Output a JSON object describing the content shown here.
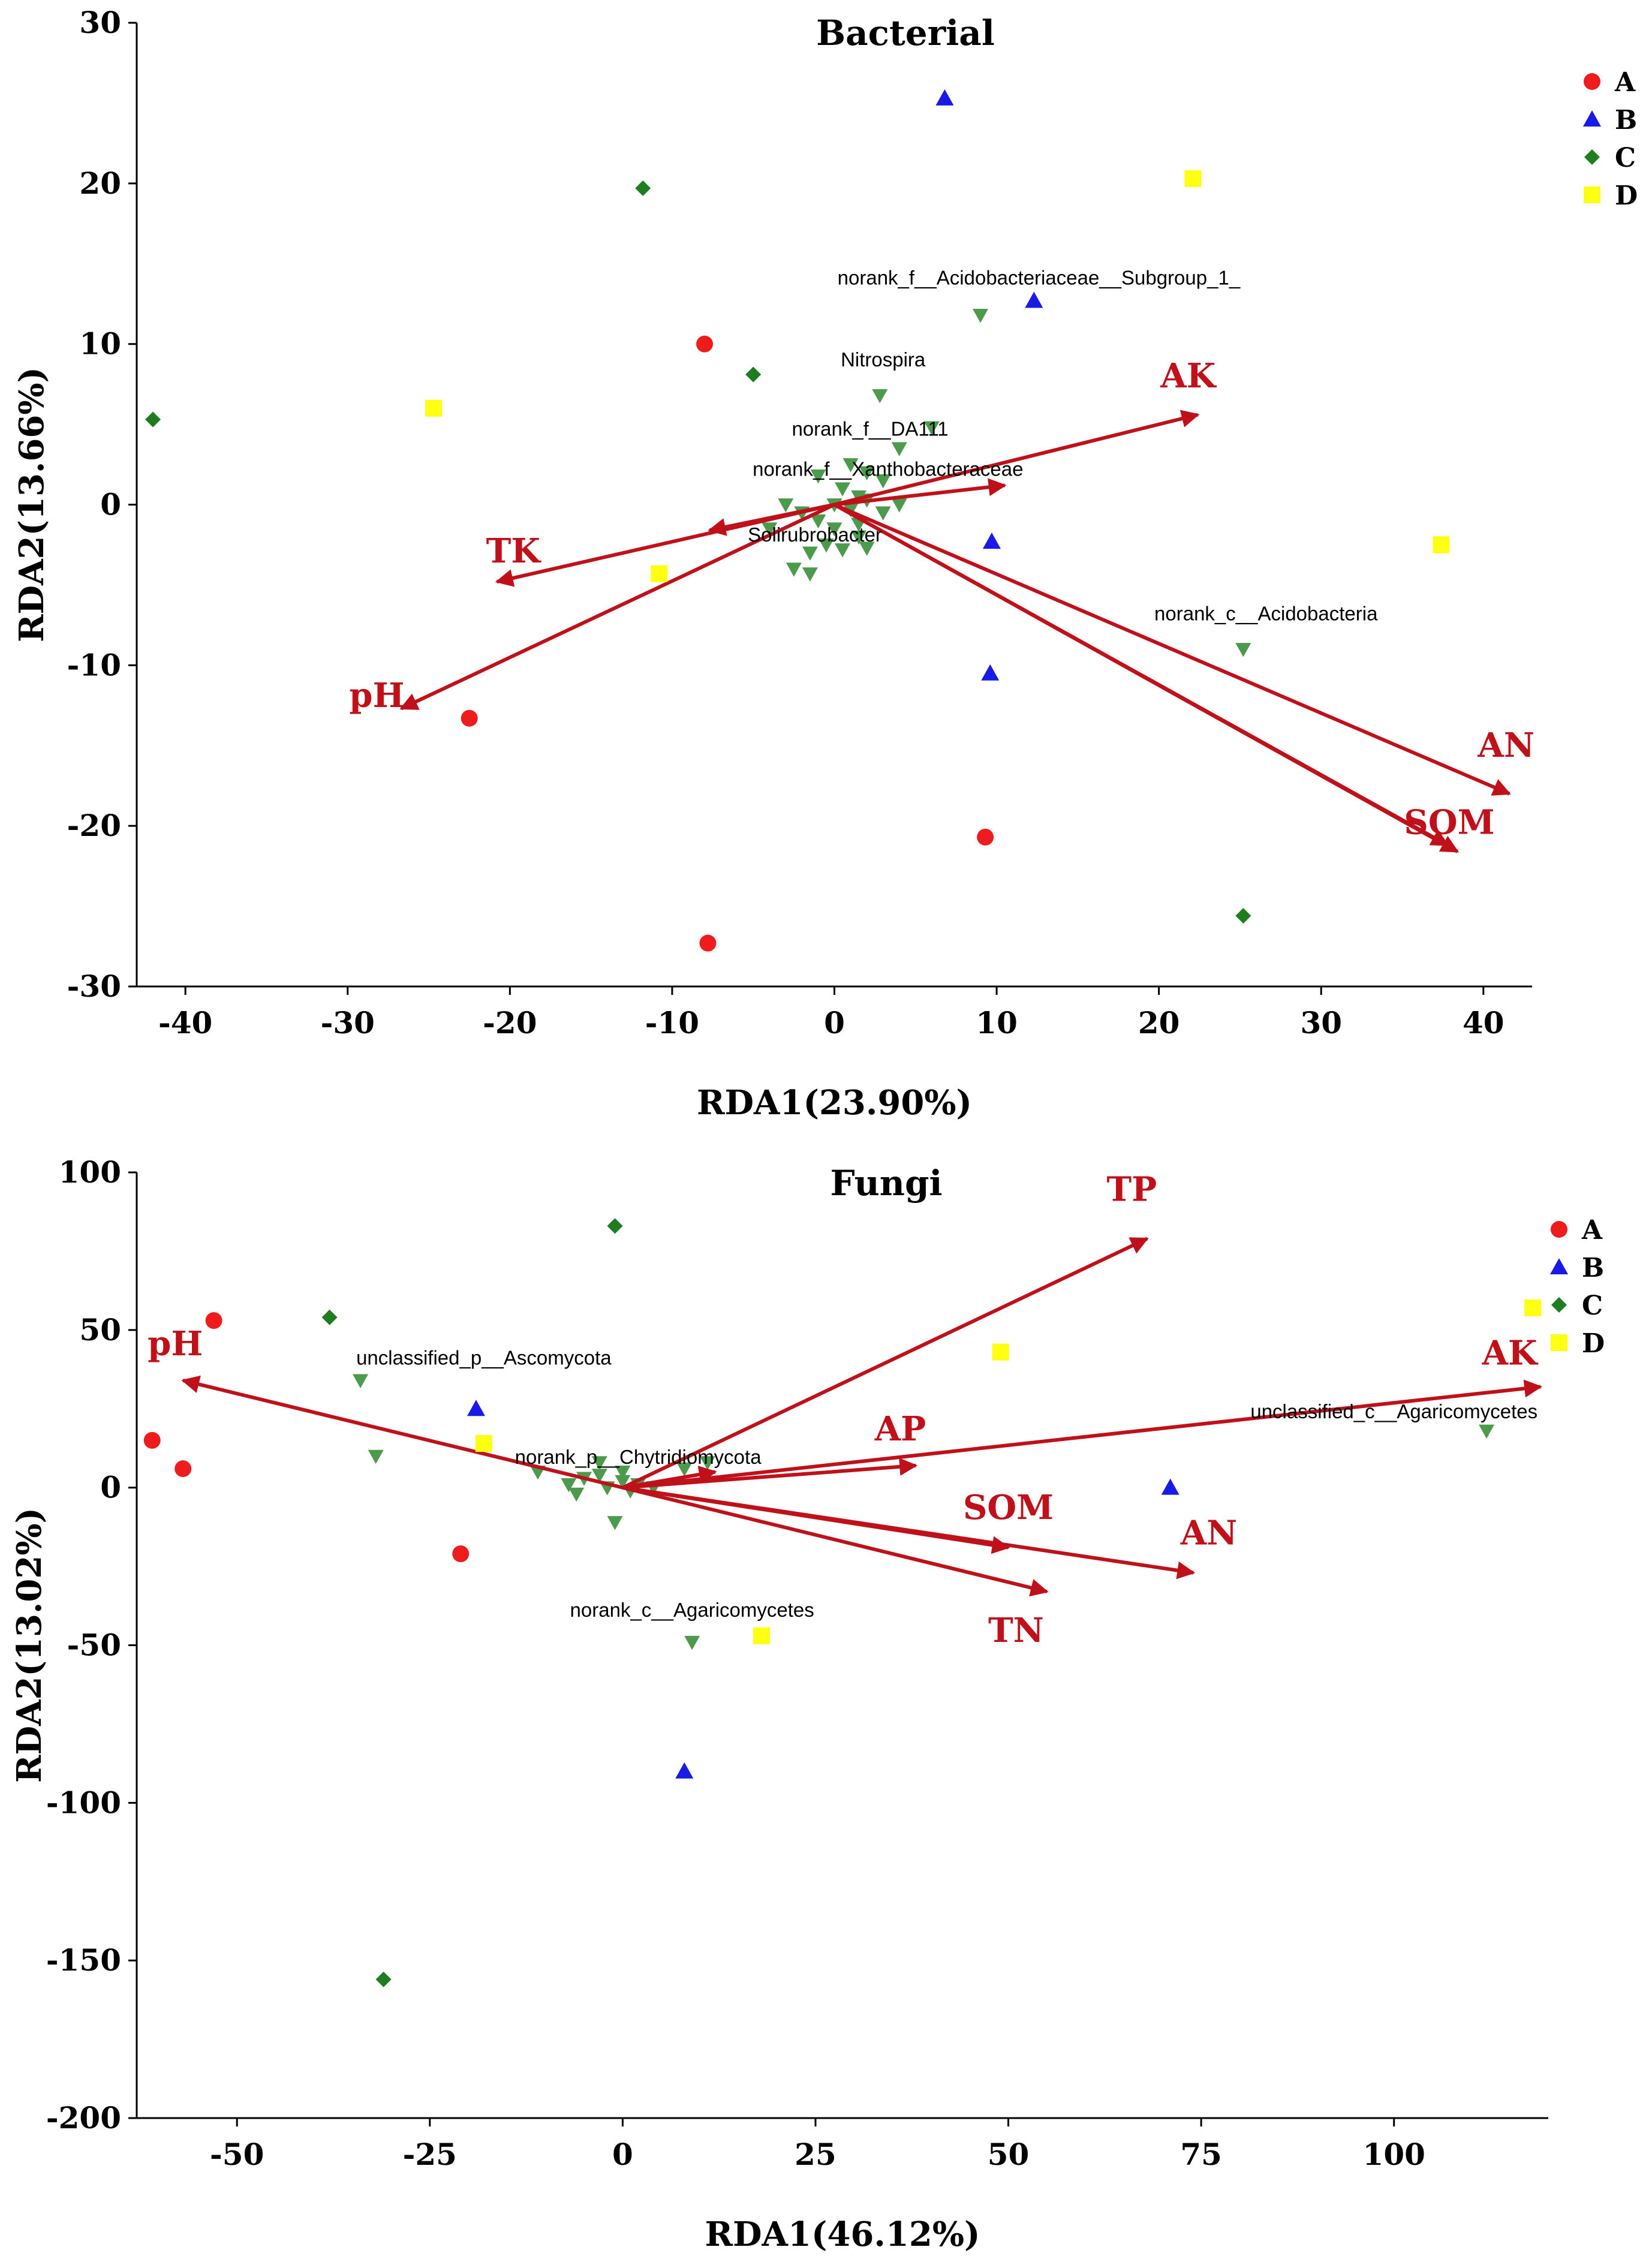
{
  "chart_data": [
    {
      "type": "scatter",
      "title": "Bacterial",
      "xlabel": "RDA1(23.90%)",
      "ylabel": "RDA2(13.66%)",
      "xlim": [
        -43,
        43
      ],
      "ylim": [
        -30,
        30
      ],
      "xticks": [
        -40,
        -30,
        -20,
        -10,
        0,
        10,
        20,
        30,
        40
      ],
      "yticks": [
        -30,
        -20,
        -10,
        0,
        10,
        20,
        30
      ],
      "grid": false,
      "legend_position": "top-right",
      "colors": {
        "A": "#ee1c1c",
        "B": "#1a1ae6",
        "C": "#1e7d1e",
        "D": "#ffff11",
        "species": "#4c9a4c",
        "arrow": "#c0111a"
      },
      "series": [
        {
          "name": "A",
          "marker": "circle",
          "points": [
            [
              -8,
              10
            ],
            [
              -22.5,
              -13.3
            ],
            [
              9.3,
              -20.7
            ],
            [
              -7.8,
              -27.3
            ]
          ]
        },
        {
          "name": "B",
          "marker": "triangle",
          "points": [
            [
              6.8,
              25.3
            ],
            [
              12.3,
              12.7
            ],
            [
              9.7,
              -2.3
            ],
            [
              9.6,
              -10.5
            ]
          ]
        },
        {
          "name": "C",
          "marker": "diamond",
          "points": [
            [
              -42,
              5.3
            ],
            [
              -11.8,
              19.7
            ],
            [
              -5,
              8.1
            ],
            [
              25.2,
              -25.6
            ]
          ]
        },
        {
          "name": "D",
          "marker": "square",
          "points": [
            [
              -24.7,
              6
            ],
            [
              -10.8,
              -4.3
            ],
            [
              22.1,
              20.3
            ],
            [
              37.4,
              -2.5
            ]
          ]
        }
      ],
      "species": [
        [
          9,
          11.8
        ],
        [
          2.8,
          6.8
        ],
        [
          4,
          3.5
        ],
        [
          6,
          4.8
        ],
        [
          1,
          2.5
        ],
        [
          2,
          2
        ],
        [
          3,
          1.5
        ],
        [
          -1,
          1.8
        ],
        [
          0.5,
          1
        ],
        [
          1.5,
          0.5
        ],
        [
          -3,
          0
        ],
        [
          -2,
          -0.5
        ],
        [
          0,
          0
        ],
        [
          1,
          -0.3
        ],
        [
          2,
          0.3
        ],
        [
          3,
          -0.5
        ],
        [
          4,
          0
        ],
        [
          -1,
          -1
        ],
        [
          0,
          -1.5
        ],
        [
          1.5,
          -2
        ],
        [
          -0.5,
          -2.5
        ],
        [
          0.5,
          -2.8
        ],
        [
          2,
          -2.7
        ],
        [
          -1.5,
          -3
        ],
        [
          -2.5,
          -4
        ],
        [
          -1.5,
          -4.3
        ],
        [
          1.5,
          -1.2
        ],
        [
          -4,
          -1.5
        ],
        [
          25.2,
          -9
        ]
      ],
      "species_labels": [
        {
          "text": "norank_f__Acidobacteriaceae__Subgroup_1_",
          "x": 12.6,
          "y": 13.7
        },
        {
          "text": "Nitrospira",
          "x": 3,
          "y": 8.6
        },
        {
          "text": "norank_f__DA111",
          "x": 2.2,
          "y": 4.3
        },
        {
          "text": "norank_f__Xanthobacteraceae",
          "x": 3.3,
          "y": 1.8
        },
        {
          "text": "Solirubrobacter",
          "x": -1.2,
          "y": -2.3
        },
        {
          "text": "norank_c__Acidobacteria",
          "x": 26.6,
          "y": -7.2
        }
      ],
      "arrows": [
        {
          "name": "AK",
          "x": 22.4,
          "y": 5.6,
          "label_x": 21.8,
          "label_y": 7.3
        },
        {
          "name": "",
          "x": 10.5,
          "y": 1.2,
          "label_x": 10.5,
          "label_y": 1.2
        },
        {
          "name": "",
          "x": -7.7,
          "y": -1.6,
          "label_x": -7.7,
          "label_y": -1.6
        },
        {
          "name": "TK",
          "x": -20.8,
          "y": -4.8,
          "label_x": -19.8,
          "label_y": -3.6
        },
        {
          "name": "pH",
          "x": -26.7,
          "y": -12.7,
          "label_x": -28.2,
          "label_y": -12.6
        },
        {
          "name": "AN",
          "x": 41.6,
          "y": -18,
          "label_x": 41.4,
          "label_y": -15.7
        },
        {
          "name": "SOM",
          "x": 38.4,
          "y": -21.6,
          "label_x": 37.9,
          "label_y": -20.5
        },
        {
          "name": "",
          "x": 37.8,
          "y": -21.2,
          "label_x": 37.8,
          "label_y": -21.2
        }
      ]
    },
    {
      "type": "scatter",
      "title": "Fungi",
      "xlabel": "RDA1(46.12%)",
      "ylabel": "RDA2(13.02%)",
      "xlim": [
        -63,
        120
      ],
      "ylim": [
        -200,
        100
      ],
      "xticks": [
        -50,
        -25,
        0,
        25,
        50,
        75,
        100
      ],
      "yticks": [
        -200,
        -150,
        -100,
        -50,
        0,
        50,
        100
      ],
      "grid": false,
      "legend_position": "top-right",
      "colors": {
        "A": "#ee1c1c",
        "B": "#1a1ae6",
        "C": "#1e7d1e",
        "D": "#ffff11",
        "species": "#4c9a4c",
        "arrow": "#c0111a"
      },
      "series": [
        {
          "name": "A",
          "marker": "circle",
          "points": [
            [
              -53,
              53
            ],
            [
              -61,
              15
            ],
            [
              -57,
              6
            ],
            [
              -21,
              -21
            ]
          ]
        },
        {
          "name": "B",
          "marker": "triangle",
          "points": [
            [
              -19,
              25
            ],
            [
              71,
              0
            ],
            [
              8,
              -90
            ]
          ]
        },
        {
          "name": "C",
          "marker": "diamond",
          "points": [
            [
              -1,
              83
            ],
            [
              -38,
              54
            ],
            [
              -31,
              -156
            ]
          ]
        },
        {
          "name": "D",
          "marker": "square",
          "points": [
            [
              49,
              43
            ],
            [
              118,
              57
            ],
            [
              -18,
              14
            ],
            [
              18,
              -47
            ]
          ]
        }
      ],
      "species": [
        [
          -34,
          34
        ],
        [
          -32,
          10
        ],
        [
          -11,
          5
        ],
        [
          -7,
          1
        ],
        [
          -5,
          3
        ],
        [
          -3,
          8
        ],
        [
          -2,
          0
        ],
        [
          0,
          2
        ],
        [
          1,
          -1
        ],
        [
          2,
          1
        ],
        [
          -1,
          -11
        ],
        [
          8,
          6
        ],
        [
          11,
          8
        ],
        [
          112,
          18
        ],
        [
          9,
          -49
        ],
        [
          -6,
          -2
        ],
        [
          -3,
          4
        ],
        [
          0,
          5
        ],
        [
          4,
          0
        ]
      ],
      "species_labels": [
        {
          "text": "unclassified_p__Ascomycota",
          "x": -18,
          "y": 39
        },
        {
          "text": "norank_p__Chytridiomycota",
          "x": 2,
          "y": 7.5
        },
        {
          "text": "unclassified_c__Agaricomycetes",
          "x": 100,
          "y": 22
        },
        {
          "text": "norank_c__Agaricomycetes",
          "x": 9,
          "y": -41
        }
      ],
      "arrows": [
        {
          "name": "TP",
          "x": 68,
          "y": 79,
          "label_x": 66,
          "label_y": 91
        },
        {
          "name": "AK",
          "x": 119,
          "y": 32,
          "label_x": 115,
          "label_y": 39
        },
        {
          "name": "AP",
          "x": 38,
          "y": 7,
          "label_x": 36,
          "label_y": 15
        },
        {
          "name": "",
          "x": 12,
          "y": 5,
          "label_x": 12,
          "label_y": 5
        },
        {
          "name": "SOM",
          "x": 50,
          "y": -19,
          "label_x": 50,
          "label_y": -10
        },
        {
          "name": "AN",
          "x": 74,
          "y": -27,
          "label_x": 76,
          "label_y": -18
        },
        {
          "name": "TN",
          "x": 55,
          "y": -33,
          "label_x": 51,
          "label_y": -49
        },
        {
          "name": "pH",
          "x": -57,
          "y": 34,
          "label_x": -58,
          "label_y": 42
        }
      ]
    }
  ]
}
